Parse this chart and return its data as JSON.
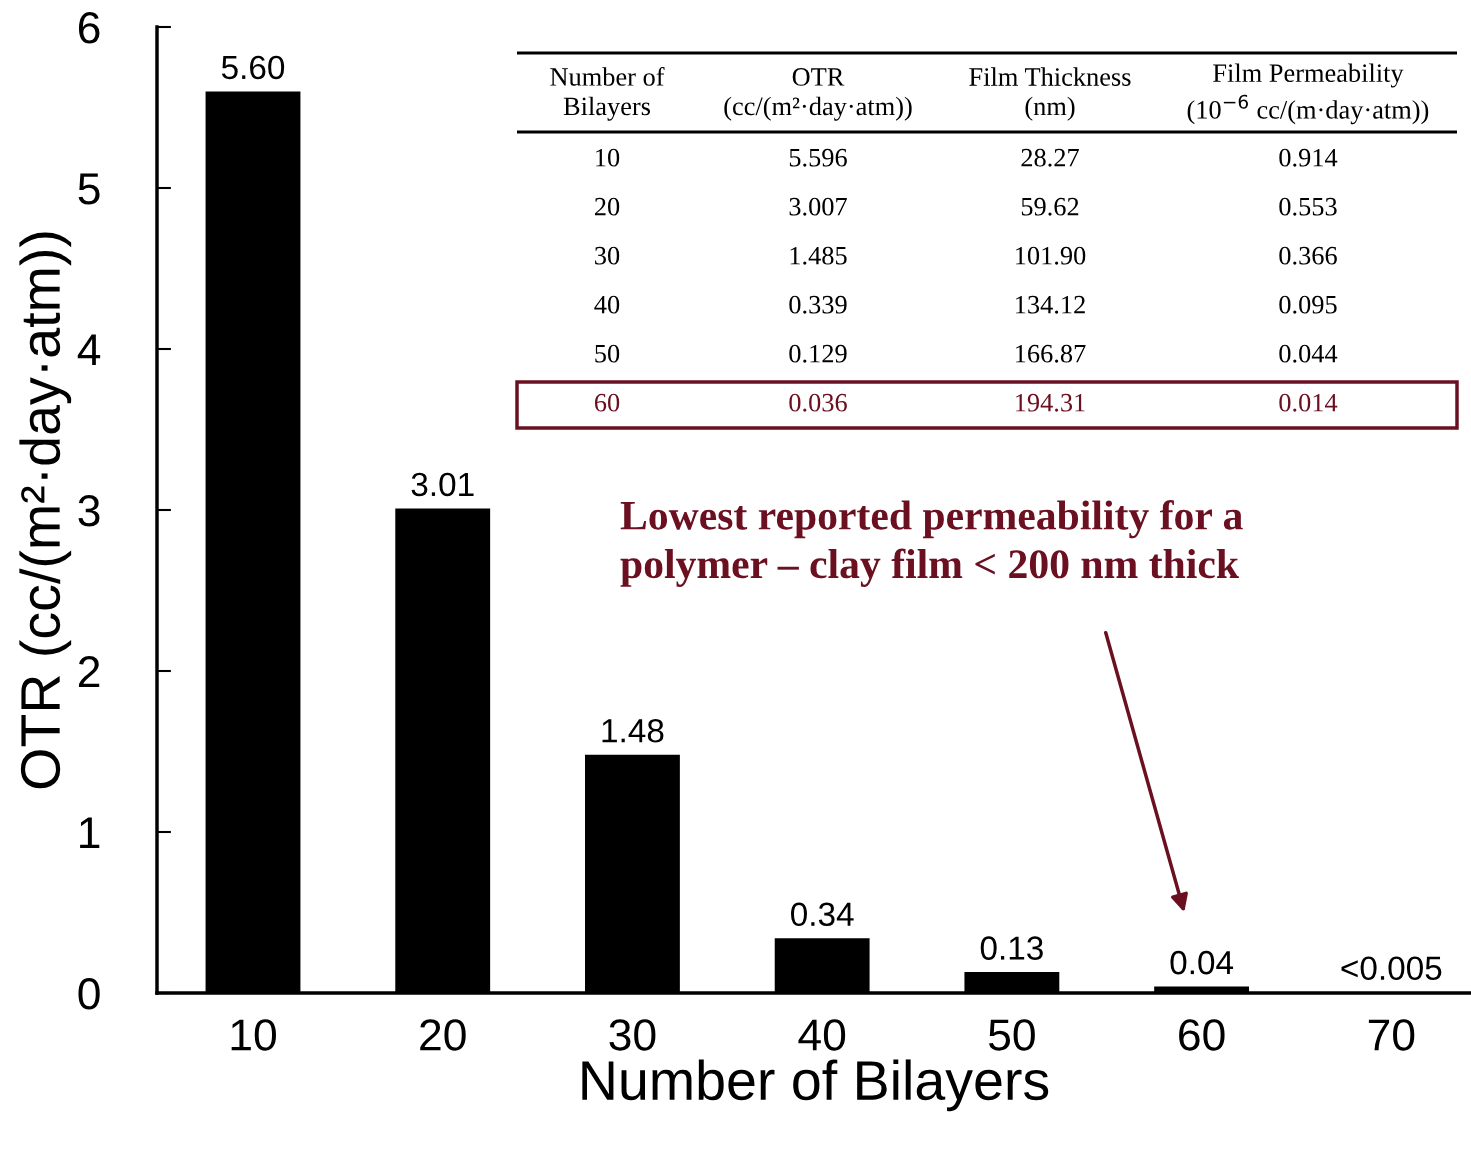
{
  "chart_data": {
    "type": "bar",
    "xlabel": "Number of Bilayers",
    "ylabel": "OTR (cc/(m²·day·atm))",
    "categories": [
      "10",
      "20",
      "30",
      "40",
      "50",
      "60",
      "70"
    ],
    "series": [
      {
        "color": "#000000",
        "values": [
          5.6,
          3.01,
          1.48,
          0.34,
          0.13,
          0.04,
          0.005
        ],
        "value_labels": [
          "5.60",
          "3.01",
          "1.48",
          "0.34",
          "0.13",
          "0.04",
          "<0.005"
        ]
      }
    ],
    "ylim": [
      0,
      6
    ],
    "yticks": [
      0,
      1,
      2,
      3,
      4,
      5,
      6
    ],
    "grid": false,
    "legend": false,
    "annotations": [
      "Lowest reported permeability for a\npolymer – clay film < 200 nm thick",
      "Number of\nBilayers",
      "OTR\n(cc/(m²·day·atm))",
      "Film Thickness\n(nm)",
      "Film Permeability\n(10$^{−6}$ cc/(m·day·atm))",
      "10",
      "5.596",
      "28.27",
      "0.914",
      "20",
      "3.007",
      "59.62",
      "0.553",
      "30",
      "1.485",
      "101.90",
      "0.366",
      "40",
      "0.339",
      "134.12",
      "0.095",
      "50",
      "0.129",
      "166.87",
      "0.044",
      "60",
      "0.036",
      "194.31",
      "0.014"
    ]
  }
}
